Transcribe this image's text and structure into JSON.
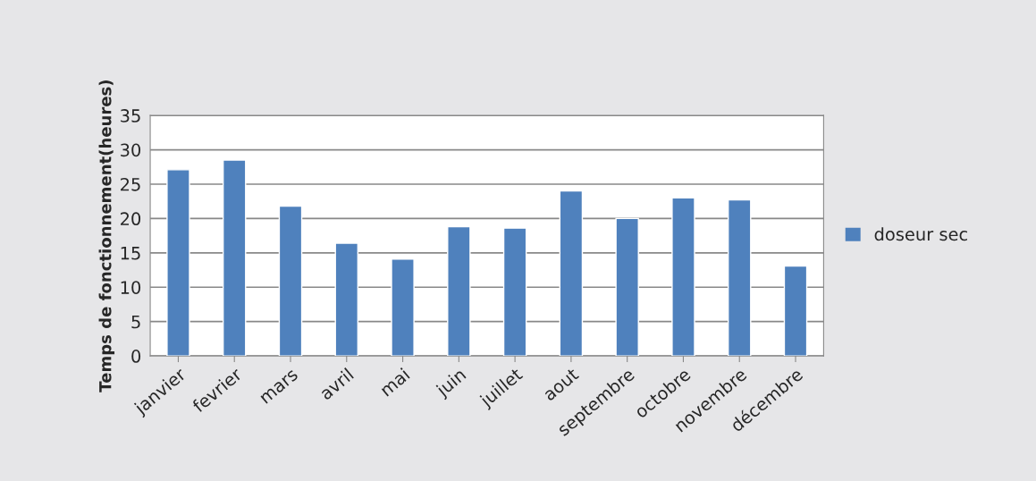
{
  "chart_data": {
    "type": "bar",
    "ylabel": "Temps de fonctionnement(heures)",
    "categories": [
      "janvier",
      "fevrier",
      "mars",
      "avril",
      "mai",
      "juin",
      "juillet",
      "aout",
      "septembre",
      "octobre",
      "novembre",
      "décembre"
    ],
    "series": [
      {
        "name": "doseur sec",
        "color": "#4f81bd",
        "values": [
          27.1,
          28.5,
          21.8,
          16.4,
          14.1,
          18.8,
          18.6,
          24.0,
          20.0,
          23.0,
          22.7,
          13.1
        ]
      }
    ],
    "ylim": [
      0,
      35
    ],
    "yticks": [
      0,
      5,
      10,
      15,
      20,
      25,
      30,
      35
    ],
    "grid": "y",
    "legend": "right"
  }
}
